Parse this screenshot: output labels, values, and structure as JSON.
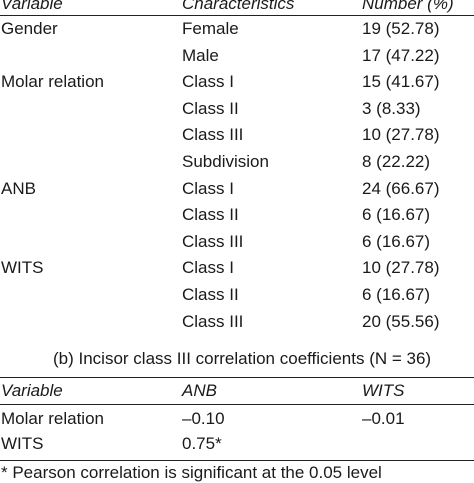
{
  "table_a": {
    "headers": {
      "variable": "Variable",
      "characteristics": "Characteristics",
      "number": "Number (%)"
    },
    "rows": [
      {
        "variable": "Gender",
        "characteristic": "Female",
        "number": "19 (52.78)"
      },
      {
        "variable": "",
        "characteristic": "Male",
        "number": "17 (47.22)"
      },
      {
        "variable": "Molar relation",
        "characteristic": "Class I",
        "number": "15 (41.67)"
      },
      {
        "variable": "",
        "characteristic": "Class II",
        "number": "3 (8.33)"
      },
      {
        "variable": "",
        "characteristic": "Class III",
        "number": "10 (27.78)"
      },
      {
        "variable": "",
        "characteristic": "Subdivision",
        "number": "8 (22.22)"
      },
      {
        "variable": "ANB",
        "characteristic": "Class I",
        "number": "24 (66.67)"
      },
      {
        "variable": "",
        "characteristic": "Class II",
        "number": "6 (16.67)"
      },
      {
        "variable": "",
        "characteristic": "Class III",
        "number": "6 (16.67)"
      },
      {
        "variable": "WITS",
        "characteristic": "Class I",
        "number": "10 (27.78)"
      },
      {
        "variable": "",
        "characteristic": "Class II",
        "number": "6 (16.67)"
      },
      {
        "variable": "",
        "characteristic": "Class III",
        "number": "20 (55.56)"
      }
    ]
  },
  "table_b": {
    "title": "(b) Incisor class III correlation coefficients (N = 36)",
    "headers": {
      "variable": "Variable",
      "anb": "ANB",
      "wits": "WITS"
    },
    "rows": [
      {
        "variable": "Molar relation",
        "anb": "–0.10",
        "wits": "–0.01"
      },
      {
        "variable": "WITS",
        "anb": "0.75*",
        "wits": ""
      }
    ]
  },
  "footnote": "* Pearson correlation is significant at the 0.05 level"
}
